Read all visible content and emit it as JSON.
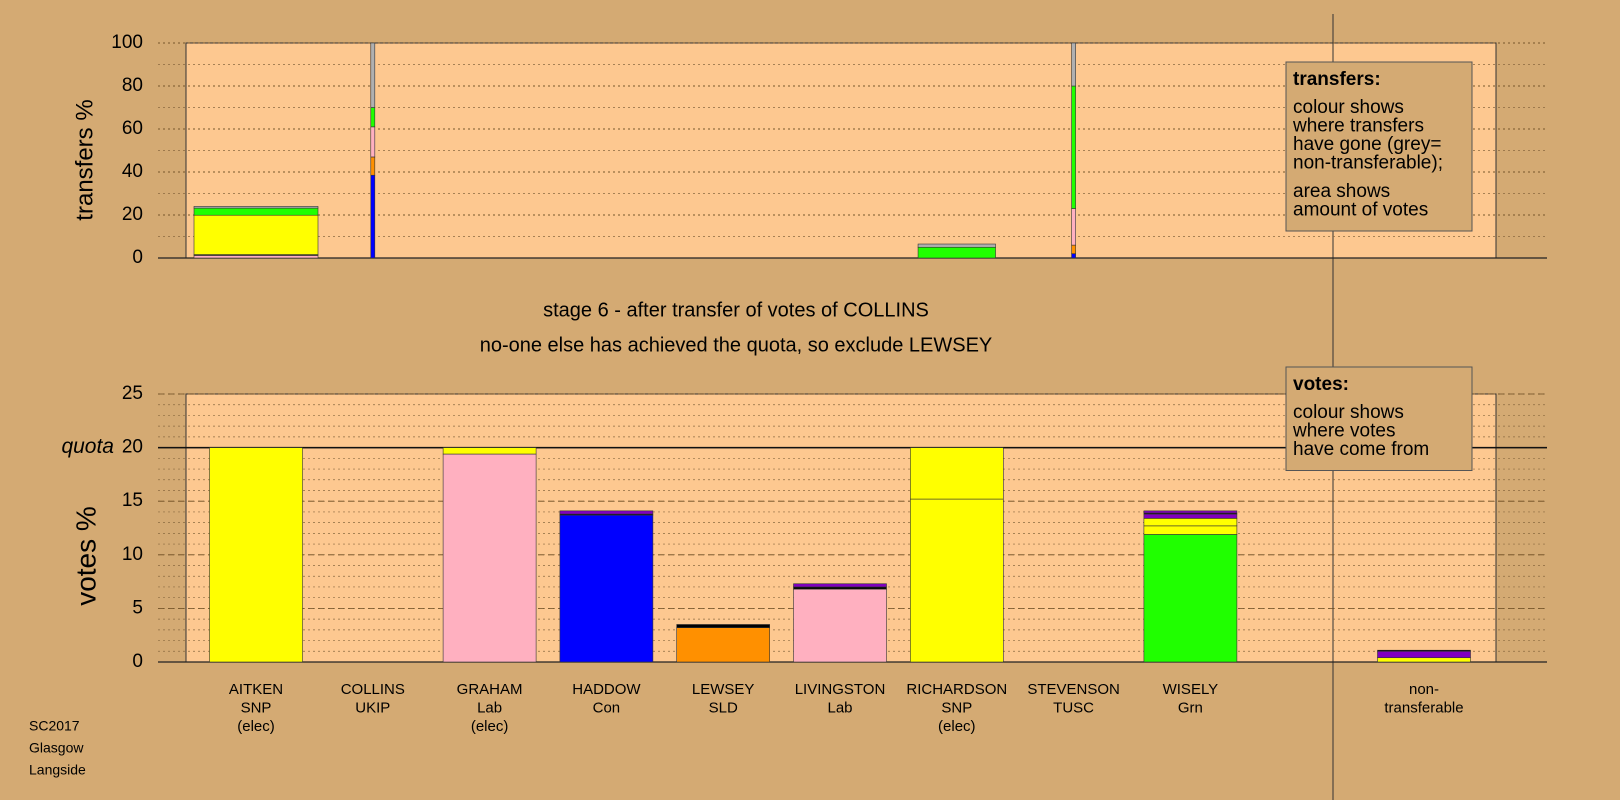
{
  "chart_data": [
    {
      "type": "stacked-bar",
      "y_label": "transfers %",
      "ylim": [
        0,
        100
      ],
      "yticks": [
        0,
        20,
        40,
        60,
        80,
        100
      ],
      "minor_grid_step": 10,
      "legend": {
        "title": "transfers:",
        "paragraphs": [
          [
            "colour shows",
            "where transfers",
            "have gone (grey=",
            "non-transferable);"
          ],
          [
            "area shows",
            "amount of votes"
          ]
        ]
      },
      "amounts": [
        4.0,
        0.13,
        null,
        null,
        null,
        null,
        2.5,
        0.13,
        null,
        null
      ],
      "stacks": [
        [
          {
            "value": 1.2,
            "color": "#ffb0c0"
          },
          {
            "value": 0.4,
            "color": "#000000"
          },
          {
            "value": 18.3,
            "color": "#ffff00"
          },
          {
            "value": 3.3,
            "color": "#20ff00"
          },
          {
            "value": 0.8,
            "color": "#b0b0b0"
          }
        ],
        [
          {
            "value": 38.5,
            "color": "#0000ff"
          },
          {
            "value": 8.5,
            "color": "#ff9000"
          },
          {
            "value": 14,
            "color": "#ffb0c0"
          },
          {
            "value": 9,
            "color": "#20ff00"
          },
          {
            "value": 30,
            "color": "#b0b0b0"
          }
        ],
        [],
        [],
        [],
        [],
        [
          {
            "value": 5,
            "color": "#20ff00"
          },
          {
            "value": 1.5,
            "color": "#b0b0b0"
          }
        ],
        [
          {
            "value": 2,
            "color": "#0000ff"
          },
          {
            "value": 4,
            "color": "#ff9000"
          },
          {
            "value": 17,
            "color": "#ffb0c0"
          },
          {
            "value": 57,
            "color": "#20ff00"
          },
          {
            "value": 20,
            "color": "#b0b0b0"
          }
        ],
        [],
        []
      ]
    },
    {
      "type": "stacked-bar",
      "title": "stage 6 - after transfer of votes of COLLINS",
      "subtitle": "no-one else has achieved the quota, so exclude LEWSEY",
      "y_label": "votes %",
      "ylim": [
        0,
        25
      ],
      "yticks": [
        0,
        5,
        10,
        15,
        20,
        25
      ],
      "minor_grid_step": 1,
      "quota": {
        "value": 20,
        "label": "quota"
      },
      "legend": {
        "title": "votes:",
        "paragraphs": [
          [
            "colour shows",
            "where votes",
            "have come from"
          ]
        ]
      },
      "categories": [
        [
          "AITKEN",
          "SNP",
          "(elec)"
        ],
        [
          "COLLINS",
          "UKIP"
        ],
        [
          "GRAHAM",
          "Lab",
          "(elec)"
        ],
        [
          "HADDOW",
          "Con"
        ],
        [
          "LEWSEY",
          "SLD"
        ],
        [
          "LIVINGSTON",
          "Lab"
        ],
        [
          "RICHARDSON",
          "SNP",
          "(elec)"
        ],
        [
          "STEVENSON",
          "TUSC"
        ],
        [
          "WISELY",
          "Grn"
        ],
        [
          "non-",
          "transferable"
        ]
      ],
      "stacks": [
        [
          {
            "value": 20,
            "color": "#ffff00"
          }
        ],
        [],
        [
          {
            "value": 19.4,
            "color": "#ffb0c0"
          },
          {
            "value": 0.6,
            "color": "#ffff00"
          }
        ],
        [
          {
            "value": 13.7,
            "color": "#0000ff"
          },
          {
            "value": 0.1,
            "color": "#000000"
          },
          {
            "value": 0.3,
            "color": "#8000c0"
          }
        ],
        [
          {
            "value": 3.2,
            "color": "#ff9000"
          },
          {
            "value": 0.3,
            "color": "#000000"
          }
        ],
        [
          {
            "value": 6.8,
            "color": "#ffb0c0"
          },
          {
            "value": 0.2,
            "color": "#000000"
          },
          {
            "value": 0.3,
            "color": "#8000c0"
          }
        ],
        [
          {
            "value": 15.2,
            "color": "#ffff00"
          },
          {
            "value": 4.8,
            "color": "#ffff00"
          }
        ],
        [],
        [
          {
            "value": 11.9,
            "color": "#20ff00"
          },
          {
            "value": 0.8,
            "color": "#ffff00"
          },
          {
            "value": 0.7,
            "color": "#ffff00"
          },
          {
            "value": 0.4,
            "color": "#8000c0"
          },
          {
            "value": 0.1,
            "color": "#000000"
          },
          {
            "value": 0.2,
            "color": "#8000c0"
          }
        ],
        [
          {
            "value": 0.4,
            "color": "#ffff00"
          },
          {
            "value": 0.6,
            "color": "#8000c0"
          },
          {
            "value": 0.1,
            "color": "#000000"
          }
        ]
      ]
    }
  ],
  "footer": [
    "SC2017",
    "Glasgow",
    "Langside"
  ]
}
